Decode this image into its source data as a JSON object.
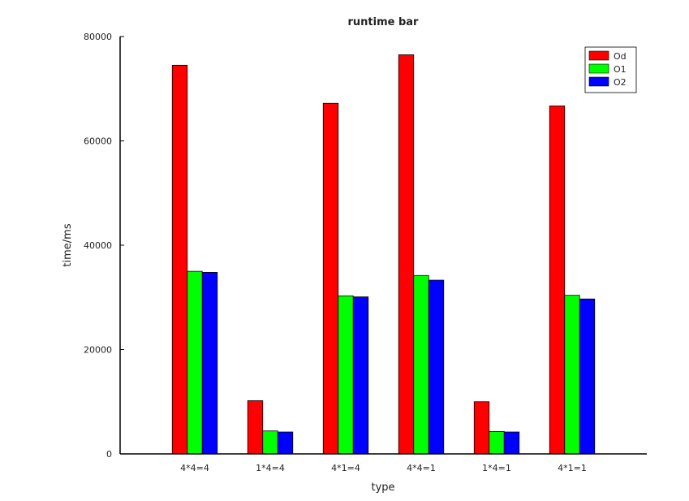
{
  "chart_data": {
    "type": "bar",
    "title": "runtime bar",
    "xlabel": "type",
    "ylabel": "time/ms",
    "categories": [
      "4*4=4",
      "1*4=4",
      "4*1=4",
      "4*4=1",
      "1*4=1",
      "4*1=1"
    ],
    "ylim": [
      0,
      80000
    ],
    "yticks": [
      0,
      20000,
      40000,
      60000,
      80000
    ],
    "series": [
      {
        "name": "Od",
        "color": "#ff0000",
        "values": [
          74500,
          10200,
          67200,
          76500,
          10000,
          66700
        ]
      },
      {
        "name": "O1",
        "color": "#00ff00",
        "values": [
          35000,
          4400,
          30300,
          34200,
          4300,
          30400
        ]
      },
      {
        "name": "O2",
        "color": "#0000ff",
        "values": [
          34800,
          4200,
          30100,
          33300,
          4200,
          29700
        ]
      }
    ],
    "legend_position": "top-right",
    "grid": false
  }
}
